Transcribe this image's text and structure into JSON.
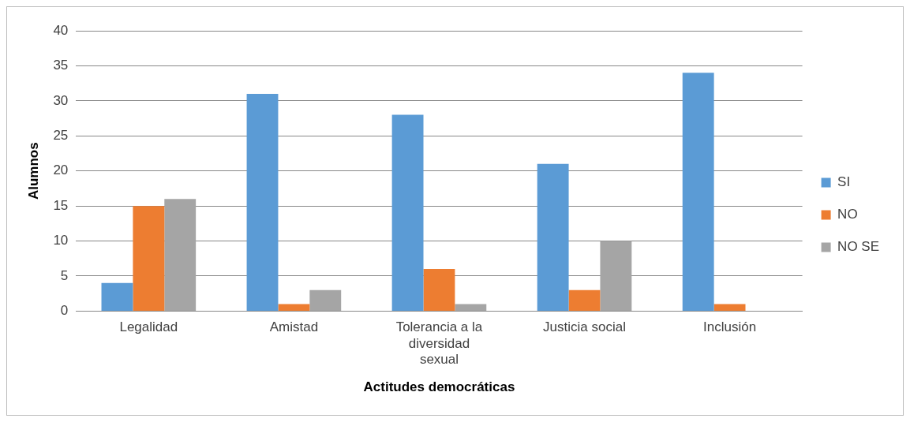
{
  "chart_data": {
    "type": "bar",
    "xlabel": "Actitudes democráticas",
    "ylabel": "Alumnos",
    "categories": [
      "Legalidad",
      "Amistad",
      "Tolerancia a la diversidad sexual",
      "Justicia social",
      "Inclusión"
    ],
    "series": [
      {
        "name": "SI",
        "color": "#5b9bd5",
        "values": [
          4,
          31,
          28,
          21,
          34
        ]
      },
      {
        "name": "NO",
        "color": "#ed7d31",
        "values": [
          15,
          1,
          6,
          3,
          1
        ]
      },
      {
        "name": "NO SE",
        "color": "#a5a5a5",
        "values": [
          16,
          3,
          1,
          10,
          0
        ]
      }
    ],
    "ylim": [
      0,
      40
    ],
    "yticks": [
      0,
      5,
      10,
      15,
      20,
      25,
      30,
      35,
      40
    ],
    "grid": "y",
    "legend": "right"
  }
}
